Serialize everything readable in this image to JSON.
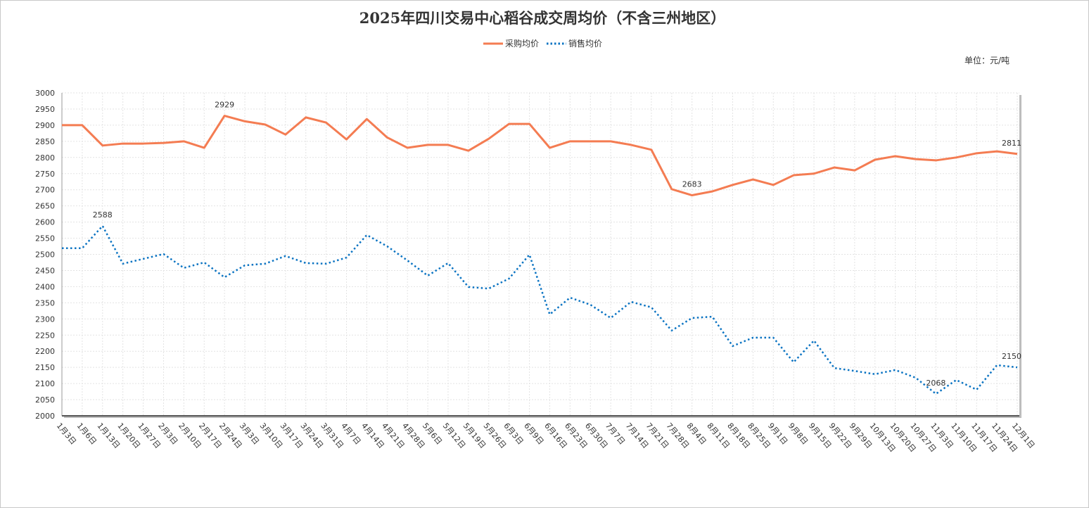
{
  "chart_data": {
    "type": "line",
    "title": "2025年四川交易中心稻谷成交周均价（不含三州地区）",
    "unit_label": "单位：元/吨",
    "xlabel": "",
    "ylabel": "",
    "ylim": [
      2000,
      3000
    ],
    "yticks": [
      2000,
      2050,
      2100,
      2150,
      2200,
      2250,
      2300,
      2350,
      2400,
      2450,
      2500,
      2550,
      2600,
      2650,
      2700,
      2750,
      2800,
      2850,
      2900,
      2950,
      3000
    ],
    "grid": true,
    "legend_position": "top-center",
    "categories": [
      "1月3日",
      "1月6日",
      "1月13日",
      "1月20日",
      "1月27日",
      "2月3日",
      "2月10日",
      "2月17日",
      "2月24日",
      "3月3日",
      "3月10日",
      "3月17日",
      "3月24日",
      "3月31日",
      "4月7日",
      "4月14日",
      "4月21日",
      "4月28日",
      "5月6日",
      "5月12日",
      "5月19日",
      "5月26日",
      "6月3日",
      "6月9日",
      "6月16日",
      "6月23日",
      "6月30日",
      "7月7日",
      "7月14日",
      "7月21日",
      "7月28日",
      "8月4日",
      "8月11日",
      "8月18日",
      "8月25日",
      "9月1日",
      "9月8日",
      "9月15日",
      "9月22日",
      "9月29日",
      "10月13日",
      "10月20日",
      "10月27日",
      "11月3日",
      "11月10日",
      "11月17日",
      "11月24日",
      "12月1日"
    ],
    "series": [
      {
        "name": "采购均价",
        "color": "#f47c52",
        "style": "solid",
        "values": [
          2900,
          2900,
          2837,
          2843,
          2843,
          2845,
          2850,
          2830,
          2929,
          2912,
          2902,
          2871,
          2924,
          2908,
          2856,
          2919,
          2862,
          2830,
          2839,
          2839,
          2821,
          2858,
          2904,
          2904,
          2830,
          2850,
          2850,
          2850,
          2839,
          2824,
          2702,
          2683,
          2695,
          2715,
          2732,
          2715,
          2745,
          2750,
          2769,
          2760,
          2793,
          2804,
          2795,
          2791,
          2800,
          2813,
          2819,
          2811
        ]
      },
      {
        "name": "销售均价",
        "color": "#0a73c2",
        "style": "dotted",
        "values": [
          2519,
          2519,
          2588,
          2471,
          2486,
          2501,
          2458,
          2475,
          2429,
          2466,
          2471,
          2495,
          2473,
          2471,
          2490,
          2560,
          2525,
          2481,
          2434,
          2473,
          2399,
          2394,
          2425,
          2499,
          2314,
          2366,
          2344,
          2303,
          2353,
          2336,
          2264,
          2303,
          2307,
          2216,
          2242,
          2242,
          2166,
          2233,
          2148,
          2139,
          2129,
          2142,
          2118,
          2068,
          2111,
          2081,
          2157,
          2150
        ]
      }
    ],
    "annotations": [
      {
        "series": 0,
        "index": 8,
        "label": "2929"
      },
      {
        "series": 0,
        "index": 31,
        "label": "2683"
      },
      {
        "series": 0,
        "index": 47,
        "label": "2811"
      },
      {
        "series": 1,
        "index": 2,
        "label": "2588"
      },
      {
        "series": 1,
        "index": 43,
        "label": "2068"
      },
      {
        "series": 1,
        "index": 47,
        "label": "2150"
      }
    ]
  }
}
